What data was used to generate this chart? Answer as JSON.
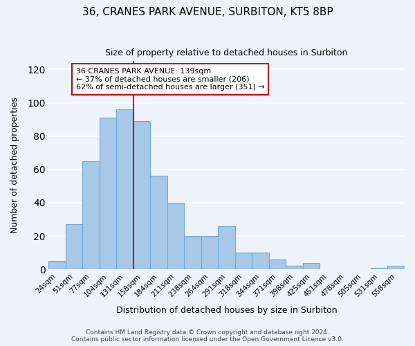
{
  "title": "36, CRANES PARK AVENUE, SURBITON, KT5 8BP",
  "subtitle": "Size of property relative to detached houses in Surbiton",
  "xlabel": "Distribution of detached houses by size in Surbiton",
  "ylabel": "Number of detached properties",
  "bar_labels": [
    "24sqm",
    "51sqm",
    "77sqm",
    "104sqm",
    "131sqm",
    "158sqm",
    "184sqm",
    "211sqm",
    "238sqm",
    "264sqm",
    "291sqm",
    "318sqm",
    "344sqm",
    "371sqm",
    "398sqm",
    "425sqm",
    "451sqm",
    "478sqm",
    "505sqm",
    "531sqm",
    "558sqm"
  ],
  "bar_values": [
    5,
    27,
    65,
    91,
    96,
    89,
    56,
    40,
    20,
    20,
    26,
    10,
    10,
    6,
    2,
    4,
    0,
    0,
    0,
    1,
    2
  ],
  "bar_color": "#a8c8e8",
  "bar_edge_color": "#6aaad4",
  "ylim": [
    0,
    125
  ],
  "yticks": [
    0,
    20,
    40,
    60,
    80,
    100,
    120
  ],
  "vline_x": 4.5,
  "vline_color": "#cc0000",
  "annotation_title": "36 CRANES PARK AVENUE: 139sqm",
  "annotation_line1": "← 37% of detached houses are smaller (206)",
  "annotation_line2": "62% of semi-detached houses are larger (351) →",
  "annotation_box_color": "#ffffff",
  "annotation_box_edge": "#cc0000",
  "footer1": "Contains HM Land Registry data © Crown copyright and database right 2024.",
  "footer2": "Contains public sector information licensed under the Open Government Licence v3.0.",
  "background_color": "#eef2fb",
  "grid_color": "#ffffff",
  "figsize": [
    6.0,
    5.0
  ],
  "dpi": 100
}
